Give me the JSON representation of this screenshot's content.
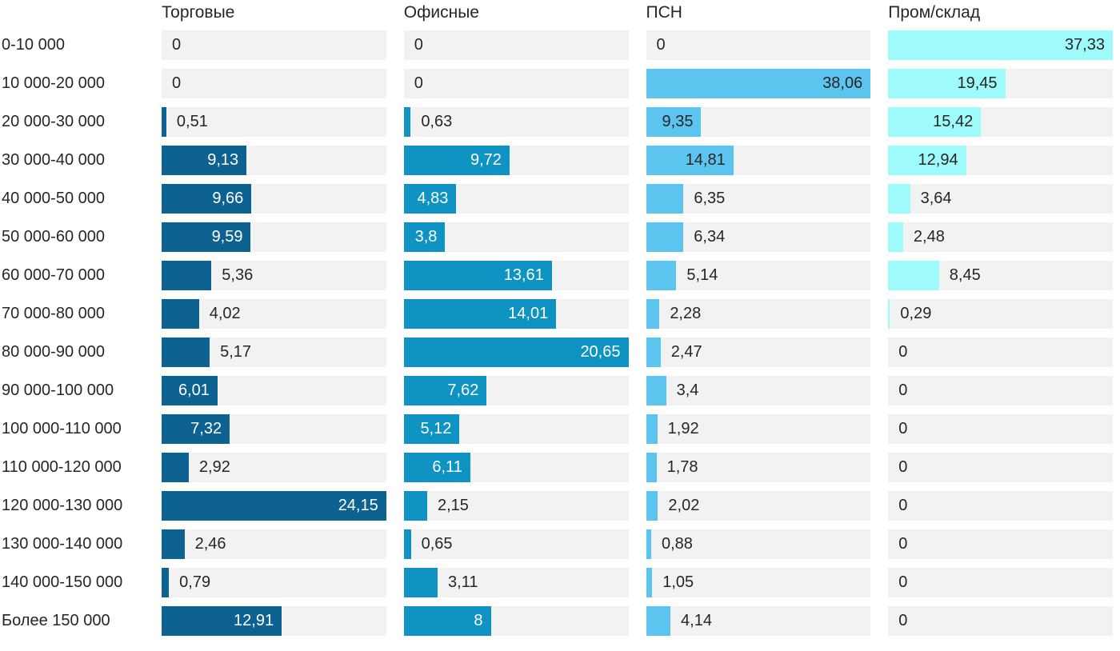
{
  "chart_data": {
    "type": "bar",
    "orientation": "horizontal",
    "decimal_separator": ",",
    "track_color": "#f2f2f2",
    "text_color": "#262626",
    "layout": {
      "scaling": "each series scaled independently so its max value fills the full track width",
      "grid": false,
      "legend": "column headers above each bar column",
      "value_labels": "at end of bar; inside bar when it fits, otherwise just outside"
    },
    "categories": [
      "0-10 000",
      "10 000-20 000",
      "20 000-30 000",
      "30 000-40 000",
      "40 000-50 000",
      "50 000-60 000",
      "60 000-70 000",
      "70 000-80 000",
      "80 000-90 000",
      "90 000-100 000",
      "100 000-110 000",
      "110 000-120 000",
      "120 000-130 000",
      "130 000-140 000",
      "140 000-150 000",
      "Более 150 000"
    ],
    "series": [
      {
        "name": "Торговые",
        "color": "#0e6291",
        "label_color_inside": "#ffffff",
        "values": [
          0,
          0,
          0.51,
          9.13,
          9.66,
          9.59,
          5.36,
          4.02,
          5.17,
          6.01,
          7.32,
          2.92,
          24.15,
          2.46,
          0.79,
          12.91
        ]
      },
      {
        "name": "Офисные",
        "color": "#0f93c2",
        "label_color_inside": "#ffffff",
        "values": [
          0,
          0,
          0.63,
          9.72,
          4.83,
          3.8,
          13.61,
          14.01,
          20.65,
          7.62,
          5.12,
          6.11,
          2.15,
          0.65,
          3.11,
          8
        ]
      },
      {
        "name": "ПСН",
        "color": "#5bc4ef",
        "label_color_inside": "#262626",
        "values": [
          0,
          38.06,
          9.35,
          14.81,
          6.35,
          6.34,
          5.14,
          2.28,
          2.47,
          3.4,
          1.92,
          1.78,
          2.02,
          0.88,
          1.05,
          4.14
        ]
      },
      {
        "name": "Пром/склад",
        "color": "#9ffafa",
        "label_color_inside": "#262626",
        "values": [
          37.33,
          19.45,
          15.42,
          12.94,
          3.64,
          2.48,
          8.45,
          0.29,
          0,
          0,
          0,
          0,
          0,
          0,
          0,
          0
        ]
      }
    ]
  }
}
